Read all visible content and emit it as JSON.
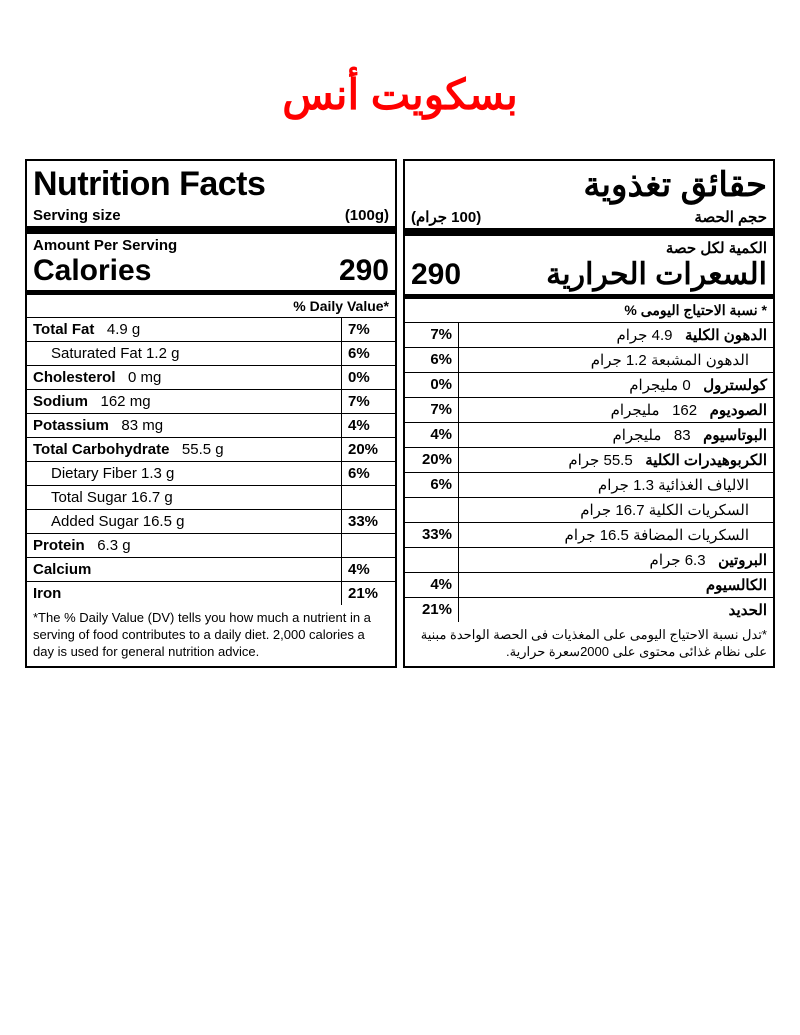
{
  "product_title": "بسكويت أنس",
  "en": {
    "title": "Nutrition Facts",
    "serving_label": "Serving size",
    "serving_value": "(100g)",
    "amount_per_serving": "Amount Per Serving",
    "calories_label": "Calories",
    "calories_value": "290",
    "dv_header": "% Daily Value*",
    "rows": [
      {
        "label": "Total Fat",
        "amount": "4.9 g",
        "dv": "7%",
        "bold": true
      },
      {
        "label": "Saturated Fat",
        "amount": "1.2 g",
        "dv": "6%",
        "indent": true
      },
      {
        "label": "Cholesterol",
        "amount": "0 mg",
        "dv": "0%",
        "bold": true
      },
      {
        "label": "Sodium",
        "amount": "162 mg",
        "dv": "7%",
        "bold": true
      },
      {
        "label": "Potassium",
        "amount": "83 mg",
        "dv": "4%",
        "bold": true
      },
      {
        "label": "Total Carbohydrate",
        "amount": "55.5 g",
        "dv": "20%",
        "bold": true
      },
      {
        "label": "Dietary Fiber",
        "amount": "1.3 g",
        "dv": "6%",
        "indent": true
      },
      {
        "label": "Total Sugar",
        "amount": "16.7 g",
        "dv": "",
        "indent": true
      },
      {
        "label": "Added Sugar",
        "amount": "16.5 g",
        "dv": "33%",
        "indent": true
      },
      {
        "label": "Protein",
        "amount": "6.3 g",
        "dv": "",
        "bold": true
      },
      {
        "label": "Calcium",
        "amount": "",
        "dv": "4%",
        "bold": true
      },
      {
        "label": "Iron",
        "amount": "",
        "dv": "21%",
        "bold": true,
        "thick": true
      }
    ],
    "disclaimer": "*The % Daily Value (DV) tells you how much a nutrient in a serving of food contributes to a daily diet. 2,000 calories a day is used for general nutrition advice."
  },
  "ar": {
    "title": "حقائق تغذوية",
    "serving_label": "حجم الحصة",
    "serving_value": "(100 جرام)",
    "amount_per_serving": "الكمية لكل حصة",
    "calories_label": "السعرات الحرارية",
    "calories_value": "290",
    "dv_header": "* نسبة الاحتياج اليومى %",
    "rows": [
      {
        "label": "الدهون الكلية",
        "amount": "4.9 جرام",
        "dv": "7%",
        "bold": true
      },
      {
        "label": "الدهون المشبعة",
        "amount": "1.2  جرام",
        "dv": "6%",
        "indent": true
      },
      {
        "label": "كولسترول",
        "amount": "0 مليجرام",
        "dv": "0%",
        "bold": true
      },
      {
        "label": "الصوديوم",
        "amount": "162   مليجرام",
        "dv": "7%",
        "bold": true
      },
      {
        "label": "البوتاسيوم",
        "amount": "83   مليجرام",
        "dv": "4%",
        "bold": true
      },
      {
        "label": "الكربوهيدرات الكلية",
        "amount": "55.5 جرام",
        "dv": "20%",
        "bold": true
      },
      {
        "label": "الالياف الغذائية",
        "amount": "1.3   جرام",
        "dv": "6%",
        "indent": true
      },
      {
        "label": "السكريات الكلية",
        "amount": "16.7 جرام",
        "dv": "",
        "indent": true
      },
      {
        "label": "السكريات المضافة",
        "amount": "16.5 جرام",
        "dv": "33%",
        "indent": true
      },
      {
        "label": "البروتين",
        "amount": "6.3 جرام",
        "dv": "",
        "bold": true
      },
      {
        "label": "الكالسيوم",
        "amount": "",
        "dv": "4%",
        "bold": true
      },
      {
        "label": "الحديد",
        "amount": "",
        "dv": "21%",
        "bold": true,
        "thick": true
      }
    ],
    "disclaimer": "*تدل نسبة الاحتياج اليومى على المغذيات فى الحصة الواحدة مبنية على نظام غذائى محتوى على 2000سعرة حرارية."
  }
}
